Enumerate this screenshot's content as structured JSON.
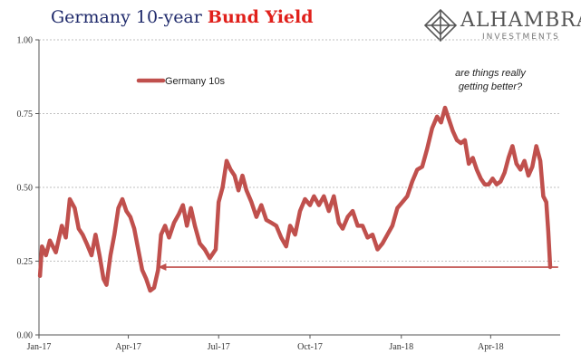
{
  "title": {
    "part1": "Germany 10-year ",
    "part2": "Bund Yield"
  },
  "logo": {
    "name": "ALHAMBRA",
    "tagline": "INVESTMENTS"
  },
  "colors": {
    "title_blue": "#1f2a6b",
    "title_red": "#e0201b",
    "series": "#c0504d",
    "grid": "#bfbfbf"
  },
  "chart_data": {
    "type": "line",
    "title": "Germany 10-year Bund Yield",
    "xlabel": "",
    "ylabel": "",
    "ylim": [
      0,
      1
    ],
    "yticks": [
      0.0,
      0.25,
      0.5,
      0.75,
      1.0
    ],
    "ytick_labels": [
      "0.00",
      "0.25",
      "0.50",
      "0.75",
      "1.00"
    ],
    "xlim": [
      "2017-01-01",
      "2018-06-10"
    ],
    "xticks": [
      "2017-01-01",
      "2017-04-01",
      "2017-07-01",
      "2017-10-01",
      "2018-01-01",
      "2018-04-01"
    ],
    "xtick_labels": [
      "Jan-17",
      "Apr-17",
      "Jul-17",
      "Oct-17",
      "Jan-18",
      "Apr-18"
    ],
    "grid": "horizontal dashed",
    "legend": {
      "placement": "top-left",
      "entries": [
        "Germany 10s"
      ]
    },
    "annotations": [
      {
        "text_lines": [
          "are things really",
          "getting better?"
        ],
        "placement": "top-right"
      },
      {
        "type": "arrow",
        "y": 0.23,
        "from_date": "2018-06-08",
        "to_date": "2017-05-01"
      }
    ],
    "series": [
      {
        "name": "Germany 10s",
        "points": [
          [
            "2017-01-02",
            0.2
          ],
          [
            "2017-01-04",
            0.3
          ],
          [
            "2017-01-08",
            0.27
          ],
          [
            "2017-01-12",
            0.32
          ],
          [
            "2017-01-18",
            0.28
          ],
          [
            "2017-01-24",
            0.37
          ],
          [
            "2017-01-28",
            0.33
          ],
          [
            "2017-02-01",
            0.46
          ],
          [
            "2017-02-06",
            0.43
          ],
          [
            "2017-02-10",
            0.36
          ],
          [
            "2017-02-14",
            0.34
          ],
          [
            "2017-02-18",
            0.31
          ],
          [
            "2017-02-23",
            0.27
          ],
          [
            "2017-02-27",
            0.34
          ],
          [
            "2017-03-03",
            0.27
          ],
          [
            "2017-03-07",
            0.19
          ],
          [
            "2017-03-10",
            0.17
          ],
          [
            "2017-03-14",
            0.27
          ],
          [
            "2017-03-18",
            0.34
          ],
          [
            "2017-03-22",
            0.43
          ],
          [
            "2017-03-26",
            0.46
          ],
          [
            "2017-03-30",
            0.42
          ],
          [
            "2017-04-03",
            0.4
          ],
          [
            "2017-04-07",
            0.36
          ],
          [
            "2017-04-11",
            0.29
          ],
          [
            "2017-04-15",
            0.22
          ],
          [
            "2017-04-19",
            0.19
          ],
          [
            "2017-04-23",
            0.15
          ],
          [
            "2017-04-27",
            0.16
          ],
          [
            "2017-05-01",
            0.22
          ],
          [
            "2017-05-04",
            0.34
          ],
          [
            "2017-05-08",
            0.37
          ],
          [
            "2017-05-12",
            0.33
          ],
          [
            "2017-05-17",
            0.38
          ],
          [
            "2017-05-22",
            0.41
          ],
          [
            "2017-05-26",
            0.44
          ],
          [
            "2017-05-30",
            0.37
          ],
          [
            "2017-06-03",
            0.43
          ],
          [
            "2017-06-07",
            0.37
          ],
          [
            "2017-06-12",
            0.31
          ],
          [
            "2017-06-17",
            0.29
          ],
          [
            "2017-06-22",
            0.26
          ],
          [
            "2017-06-28",
            0.29
          ],
          [
            "2017-07-01",
            0.45
          ],
          [
            "2017-07-05",
            0.5
          ],
          [
            "2017-07-09",
            0.59
          ],
          [
            "2017-07-13",
            0.56
          ],
          [
            "2017-07-17",
            0.54
          ],
          [
            "2017-07-21",
            0.49
          ],
          [
            "2017-07-25",
            0.54
          ],
          [
            "2017-07-29",
            0.49
          ],
          [
            "2017-08-03",
            0.45
          ],
          [
            "2017-08-08",
            0.4
          ],
          [
            "2017-08-13",
            0.44
          ],
          [
            "2017-08-18",
            0.39
          ],
          [
            "2017-08-23",
            0.38
          ],
          [
            "2017-08-28",
            0.37
          ],
          [
            "2017-09-02",
            0.33
          ],
          [
            "2017-09-07",
            0.3
          ],
          [
            "2017-09-11",
            0.37
          ],
          [
            "2017-09-16",
            0.34
          ],
          [
            "2017-09-21",
            0.42
          ],
          [
            "2017-09-26",
            0.46
          ],
          [
            "2017-10-01",
            0.44
          ],
          [
            "2017-10-05",
            0.47
          ],
          [
            "2017-10-10",
            0.44
          ],
          [
            "2017-10-15",
            0.47
          ],
          [
            "2017-10-20",
            0.42
          ],
          [
            "2017-10-25",
            0.47
          ],
          [
            "2017-10-30",
            0.38
          ],
          [
            "2017-11-03",
            0.36
          ],
          [
            "2017-11-08",
            0.4
          ],
          [
            "2017-11-13",
            0.42
          ],
          [
            "2017-11-18",
            0.37
          ],
          [
            "2017-11-23",
            0.37
          ],
          [
            "2017-11-28",
            0.33
          ],
          [
            "2017-12-03",
            0.34
          ],
          [
            "2017-12-08",
            0.29
          ],
          [
            "2017-12-13",
            0.31
          ],
          [
            "2017-12-18",
            0.34
          ],
          [
            "2017-12-23",
            0.37
          ],
          [
            "2017-12-28",
            0.43
          ],
          [
            "2018-01-02",
            0.45
          ],
          [
            "2018-01-07",
            0.47
          ],
          [
            "2018-01-12",
            0.52
          ],
          [
            "2018-01-17",
            0.56
          ],
          [
            "2018-01-22",
            0.57
          ],
          [
            "2018-01-27",
            0.63
          ],
          [
            "2018-02-01",
            0.7
          ],
          [
            "2018-02-06",
            0.74
          ],
          [
            "2018-02-10",
            0.72
          ],
          [
            "2018-02-14",
            0.77
          ],
          [
            "2018-02-18",
            0.73
          ],
          [
            "2018-02-22",
            0.69
          ],
          [
            "2018-02-26",
            0.66
          ],
          [
            "2018-03-02",
            0.65
          ],
          [
            "2018-03-06",
            0.66
          ],
          [
            "2018-03-10",
            0.58
          ],
          [
            "2018-03-14",
            0.6
          ],
          [
            "2018-03-18",
            0.56
          ],
          [
            "2018-03-22",
            0.53
          ],
          [
            "2018-03-26",
            0.51
          ],
          [
            "2018-03-30",
            0.51
          ],
          [
            "2018-04-03",
            0.53
          ],
          [
            "2018-04-07",
            0.51
          ],
          [
            "2018-04-11",
            0.52
          ],
          [
            "2018-04-15",
            0.55
          ],
          [
            "2018-04-19",
            0.6
          ],
          [
            "2018-04-23",
            0.64
          ],
          [
            "2018-04-27",
            0.58
          ],
          [
            "2018-05-01",
            0.56
          ],
          [
            "2018-05-05",
            0.59
          ],
          [
            "2018-05-09",
            0.54
          ],
          [
            "2018-05-13",
            0.57
          ],
          [
            "2018-05-17",
            0.64
          ],
          [
            "2018-05-21",
            0.59
          ],
          [
            "2018-05-24",
            0.47
          ],
          [
            "2018-05-27",
            0.45
          ],
          [
            "2018-05-29",
            0.35
          ],
          [
            "2018-05-31",
            0.23
          ]
        ]
      }
    ]
  }
}
